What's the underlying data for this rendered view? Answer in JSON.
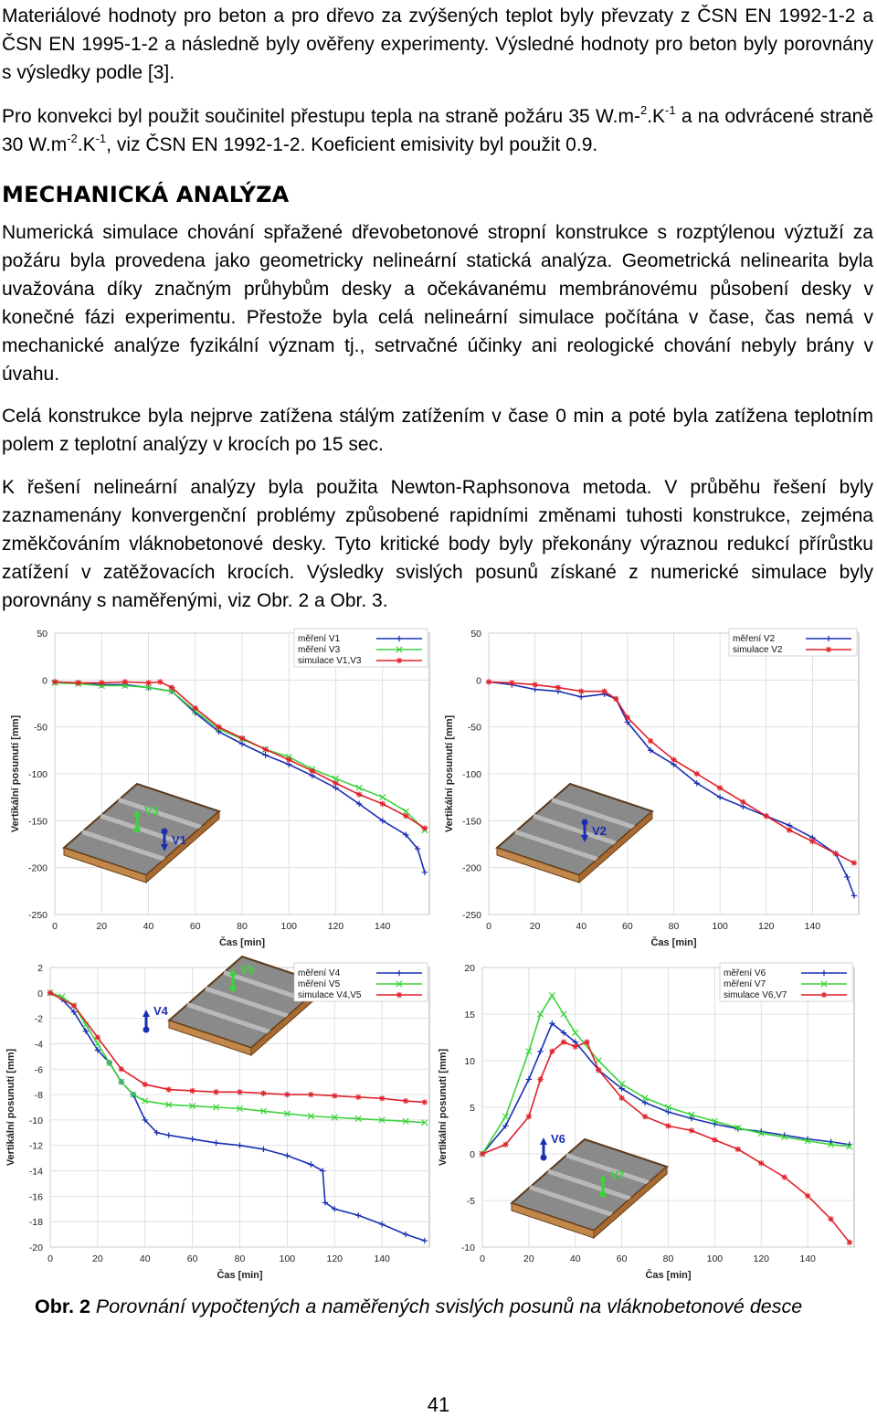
{
  "paragraphs": {
    "p1": "Materiálové hodnoty pro beton a pro dřevo za zvýšených teplot byly převzaty z ČSN EN 1992-1-2 a ČSN EN 1995-1-2 a následně byly ověřeny experimenty. Výsledné hodnoty pro beton byly porovnány s výsledky podle [3].",
    "p2_a": "Pro konvekci byl použit součinitel přestupu tepla na straně požáru 35 W.m-",
    "p2_sup1": "2",
    "p2_b": ".K",
    "p2_sup2": "-1",
    "p2_c": " a na odvrácené straně 30 W.m",
    "p2_sup3": "-2",
    "p2_d": ".K",
    "p2_sup4": "-1",
    "p2_e": ", viz ČSN EN 1992-1-2. Koeficient emisivity byl použit 0.9.",
    "heading": "MECHANICKÁ ANALÝZA",
    "p3": "Numerická simulace chování spřažené dřevobetonové stropní konstrukce s rozptýlenou výztuží za požáru byla provedena jako geometricky nelineární statická analýza. Geometrická nelinearita byla uvažována díky značným průhybům desky a očekávanému membránovému působení desky v konečné fázi experimentu. Přestože byla celá nelineární simulace počítána v čase, čas nemá v mechanické analýze fyzikální význam tj., setrvačné účinky ani reologické chování nebyly brány v úvahu.",
    "p4": "Celá konstrukce byla nejprve zatížena stálým zatížením v čase 0 min a poté byla zatížena teplotním polem z teplotní analýzy v krocích po 15 sec.",
    "p5": "K řešení nelineární analýzy byla použita Newton-Raphsonova metoda. V průběhu řešení byly zaznamenány konvergenční problémy způsobené rapidními změnami tuhosti konstrukce, zejména změkčováním vláknobetonové desky. Tyto kritické body byly překonány výraznou redukcí přírůstku zatížení v zatěžovacích krocích. Výsledky svislých posunů získané z numerické simulace byly porovnány s naměřenými, viz Obr. 2 a Obr. 3."
  },
  "caption": {
    "label": "Obr. 2",
    "text": " Porovnání vypočtených a naměřených svislých posunů na vláknobetonové desce"
  },
  "page_number": "41",
  "colors": {
    "blue": "#1a2fb3",
    "green": "#3bd43b",
    "red": "#e0202a"
  },
  "chart_data": [
    {
      "type": "line",
      "xlabel": "Čas [min]",
      "ylabel": "Vertikální posunutí [mm]",
      "xlim": [
        0,
        160
      ],
      "ylim": [
        -250,
        50
      ],
      "xticks": [
        0,
        20,
        40,
        60,
        80,
        100,
        120,
        140
      ],
      "yticks": [
        50,
        0,
        -50,
        -100,
        -150,
        -200,
        -250
      ],
      "legend_position": "top-right",
      "sensor_labels": [
        "V3",
        "V1"
      ],
      "series": [
        {
          "name": "měření V1",
          "color": "blue",
          "marker": "+",
          "x": [
            0,
            10,
            20,
            30,
            40,
            50,
            60,
            70,
            80,
            90,
            100,
            110,
            120,
            130,
            140,
            150,
            155,
            158
          ],
          "y": [
            -2,
            -3,
            -5,
            -5,
            -8,
            -12,
            -35,
            -55,
            -68,
            -80,
            -90,
            -102,
            -115,
            -132,
            -150,
            -165,
            -180,
            -205
          ]
        },
        {
          "name": "měření V3",
          "color": "green",
          "marker": "x",
          "x": [
            0,
            10,
            20,
            30,
            40,
            50,
            60,
            70,
            80,
            90,
            100,
            110,
            120,
            130,
            140,
            150,
            158
          ],
          "y": [
            -3,
            -4,
            -6,
            -6,
            -8,
            -12,
            -33,
            -52,
            -63,
            -74,
            -82,
            -95,
            -105,
            -115,
            -125,
            -140,
            -160
          ]
        },
        {
          "name": "simulace V1,V3",
          "color": "red",
          "marker": "*",
          "x": [
            0,
            10,
            20,
            30,
            40,
            45,
            50,
            60,
            70,
            80,
            90,
            100,
            110,
            120,
            130,
            140,
            150,
            158
          ],
          "y": [
            -2,
            -3,
            -3,
            -2,
            -3,
            -2,
            -8,
            -30,
            -50,
            -62,
            -74,
            -85,
            -97,
            -110,
            -122,
            -132,
            -145,
            -158
          ]
        }
      ]
    },
    {
      "type": "line",
      "xlabel": "Čas [min]",
      "ylabel": "Vertikální posunutí [mm]",
      "xlim": [
        0,
        160
      ],
      "ylim": [
        -250,
        50
      ],
      "xticks": [
        0,
        20,
        40,
        60,
        80,
        100,
        120,
        140
      ],
      "yticks": [
        50,
        0,
        -50,
        -100,
        -150,
        -200,
        -250
      ],
      "legend_position": "top-right",
      "sensor_labels": [
        "V2"
      ],
      "series": [
        {
          "name": "měření V2",
          "color": "blue",
          "marker": "+",
          "x": [
            0,
            10,
            20,
            30,
            40,
            50,
            55,
            60,
            70,
            80,
            90,
            100,
            110,
            120,
            130,
            140,
            150,
            155,
            158
          ],
          "y": [
            -2,
            -5,
            -10,
            -12,
            -18,
            -15,
            -20,
            -45,
            -75,
            -90,
            -110,
            -125,
            -135,
            -145,
            -155,
            -168,
            -185,
            -210,
            -230
          ]
        },
        {
          "name": "simulace V2",
          "color": "red",
          "marker": "*",
          "x": [
            0,
            10,
            20,
            30,
            40,
            50,
            55,
            60,
            70,
            80,
            90,
            100,
            110,
            120,
            130,
            140,
            150,
            158
          ],
          "y": [
            -2,
            -3,
            -5,
            -8,
            -12,
            -12,
            -20,
            -40,
            -65,
            -85,
            -100,
            -115,
            -130,
            -145,
            -160,
            -172,
            -185,
            -195
          ]
        }
      ]
    },
    {
      "type": "line",
      "xlabel": "Čas [min]",
      "ylabel": "Vertikální posunutí [mm]",
      "xlim": [
        0,
        160
      ],
      "ylim": [
        -20,
        2
      ],
      "xticks": [
        0,
        20,
        40,
        60,
        80,
        100,
        120,
        140
      ],
      "yticks": [
        2,
        0,
        -2,
        -4,
        -6,
        -8,
        -10,
        -12,
        -14,
        -16,
        -18,
        -20
      ],
      "legend_position": "top-right",
      "sensor_labels": [
        "V5",
        "V4"
      ],
      "series": [
        {
          "name": "měření V4",
          "color": "blue",
          "marker": "+",
          "x": [
            0,
            5,
            10,
            15,
            20,
            25,
            30,
            35,
            40,
            45,
            50,
            60,
            70,
            80,
            90,
            100,
            110,
            115,
            116,
            120,
            130,
            140,
            150,
            158
          ],
          "y": [
            0,
            -0.5,
            -1.5,
            -3,
            -4.5,
            -5.5,
            -7,
            -8,
            -10,
            -11,
            -11.2,
            -11.5,
            -11.8,
            -12,
            -12.3,
            -12.8,
            -13.5,
            -14,
            -16.5,
            -17,
            -17.5,
            -18.2,
            -19,
            -19.5
          ]
        },
        {
          "name": "měření V5",
          "color": "green",
          "marker": "x",
          "x": [
            0,
            5,
            10,
            15,
            20,
            25,
            30,
            35,
            40,
            50,
            60,
            70,
            80,
            90,
            100,
            110,
            120,
            130,
            140,
            150,
            158
          ],
          "y": [
            0,
            -0.3,
            -1,
            -2.5,
            -4,
            -5.5,
            -7,
            -8,
            -8.5,
            -8.8,
            -8.9,
            -9,
            -9.1,
            -9.3,
            -9.5,
            -9.7,
            -9.8,
            -9.9,
            -10,
            -10.1,
            -10.2
          ]
        },
        {
          "name": "simulace V4,V5",
          "color": "red",
          "marker": "*",
          "x": [
            0,
            10,
            20,
            30,
            40,
            50,
            60,
            70,
            80,
            90,
            100,
            110,
            120,
            130,
            140,
            150,
            158
          ],
          "y": [
            0,
            -1,
            -3.5,
            -6,
            -7.2,
            -7.6,
            -7.7,
            -7.8,
            -7.8,
            -7.9,
            -8,
            -8,
            -8.1,
            -8.2,
            -8.3,
            -8.5,
            -8.6
          ]
        }
      ]
    },
    {
      "type": "line",
      "xlabel": "Čas [min]",
      "ylabel": "Vertikální posunutí [mm]",
      "xlim": [
        0,
        160
      ],
      "ylim": [
        -10,
        20
      ],
      "xticks": [
        0,
        20,
        40,
        60,
        80,
        100,
        120,
        140
      ],
      "yticks": [
        20,
        15,
        10,
        5,
        0,
        -5,
        -10
      ],
      "legend_position": "top-right",
      "sensor_labels": [
        "V6",
        "V7"
      ],
      "series": [
        {
          "name": "měření V6",
          "color": "blue",
          "marker": "+",
          "x": [
            0,
            10,
            20,
            25,
            30,
            35,
            40,
            50,
            60,
            70,
            80,
            90,
            100,
            110,
            120,
            130,
            140,
            150,
            158
          ],
          "y": [
            0,
            3,
            8,
            11,
            14,
            13,
            12,
            9,
            7,
            5.5,
            4.5,
            3.8,
            3.2,
            2.7,
            2.4,
            2,
            1.6,
            1.3,
            1
          ]
        },
        {
          "name": "měření V7",
          "color": "green",
          "marker": "x",
          "x": [
            0,
            10,
            20,
            25,
            30,
            35,
            40,
            50,
            60,
            70,
            80,
            90,
            100,
            110,
            120,
            130,
            140,
            150,
            158
          ],
          "y": [
            0,
            4,
            11,
            15,
            17,
            15,
            13,
            10,
            7.5,
            6,
            5,
            4.2,
            3.5,
            2.8,
            2.2,
            1.8,
            1.4,
            1,
            0.8
          ]
        },
        {
          "name": "simulace V6,V7",
          "color": "red",
          "marker": "*",
          "x": [
            0,
            10,
            20,
            25,
            30,
            35,
            40,
            45,
            50,
            60,
            70,
            80,
            90,
            100,
            110,
            120,
            130,
            140,
            150,
            158
          ],
          "y": [
            0,
            1,
            4,
            8,
            11,
            12,
            11.5,
            12,
            9,
            6,
            4,
            3,
            2.5,
            1.5,
            0.5,
            -1,
            -2.5,
            -4.5,
            -7,
            -9.5
          ]
        }
      ]
    }
  ]
}
